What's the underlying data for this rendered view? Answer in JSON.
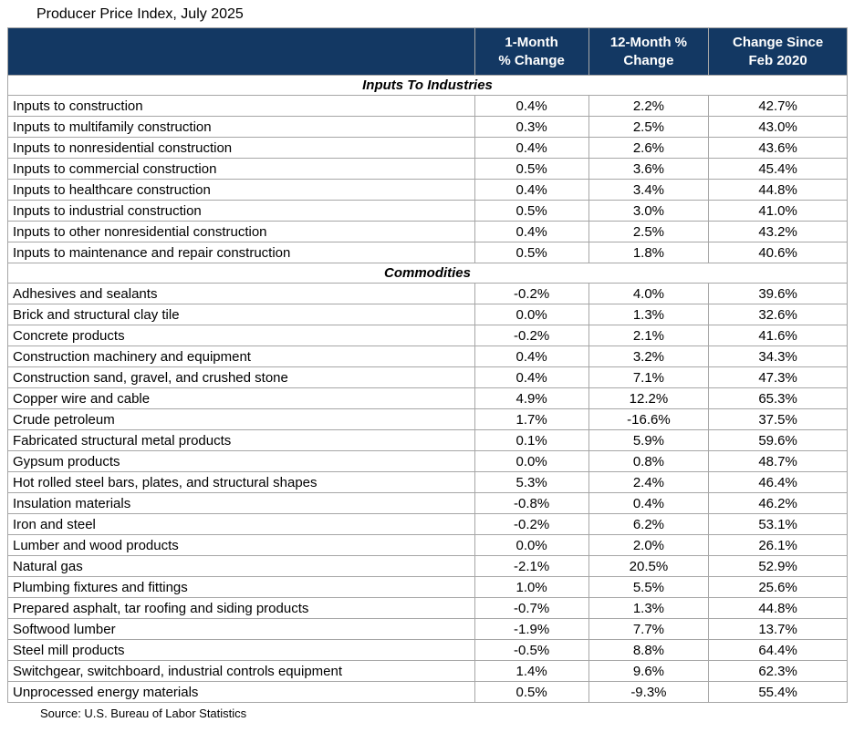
{
  "page_title": "Producer Price Index, July 2025",
  "source_note": "Source: U.S. Bureau of Labor Statistics",
  "colors": {
    "header_bg": "#133863",
    "header_text": "#ffffff",
    "border": "#a6a6a6",
    "text": "#000000",
    "background": "#ffffff"
  },
  "chart_data": {
    "type": "table",
    "title": "Producer Price Index, July 2025",
    "columns": [
      "",
      "1-Month % Change",
      "12-Month % Change",
      "Change Since Feb 2020"
    ],
    "columns_display": [
      "",
      "1-Month\n% Change",
      "12-Month %\nChange",
      "Change Since\nFeb 2020"
    ],
    "sections": [
      {
        "label": "Inputs To Industries",
        "rows": [
          {
            "label": "Inputs to construction",
            "one_month": "0.4%",
            "twelve_month": "2.2%",
            "since_feb_2020": "42.7%"
          },
          {
            "label": "Inputs to multifamily construction",
            "one_month": "0.3%",
            "twelve_month": "2.5%",
            "since_feb_2020": "43.0%"
          },
          {
            "label": "Inputs to nonresidential construction",
            "one_month": "0.4%",
            "twelve_month": "2.6%",
            "since_feb_2020": "43.6%"
          },
          {
            "label": "Inputs to commercial construction",
            "one_month": "0.5%",
            "twelve_month": "3.6%",
            "since_feb_2020": "45.4%"
          },
          {
            "label": "Inputs to healthcare construction",
            "one_month": "0.4%",
            "twelve_month": "3.4%",
            "since_feb_2020": "44.8%"
          },
          {
            "label": "Inputs to industrial construction",
            "one_month": "0.5%",
            "twelve_month": "3.0%",
            "since_feb_2020": "41.0%"
          },
          {
            "label": "Inputs to other nonresidential construction",
            "one_month": "0.4%",
            "twelve_month": "2.5%",
            "since_feb_2020": "43.2%"
          },
          {
            "label": "Inputs to maintenance and repair construction",
            "one_month": "0.5%",
            "twelve_month": "1.8%",
            "since_feb_2020": "40.6%"
          }
        ]
      },
      {
        "label": "Commodities",
        "rows": [
          {
            "label": "Adhesives and sealants",
            "one_month": "-0.2%",
            "twelve_month": "4.0%",
            "since_feb_2020": "39.6%"
          },
          {
            "label": "Brick and structural clay tile",
            "one_month": "0.0%",
            "twelve_month": "1.3%",
            "since_feb_2020": "32.6%"
          },
          {
            "label": "Concrete products",
            "one_month": "-0.2%",
            "twelve_month": "2.1%",
            "since_feb_2020": "41.6%"
          },
          {
            "label": "Construction machinery and equipment",
            "one_month": "0.4%",
            "twelve_month": "3.2%",
            "since_feb_2020": "34.3%"
          },
          {
            "label": "Construction sand, gravel, and crushed stone",
            "one_month": "0.4%",
            "twelve_month": "7.1%",
            "since_feb_2020": "47.3%"
          },
          {
            "label": "Copper wire and cable",
            "one_month": "4.9%",
            "twelve_month": "12.2%",
            "since_feb_2020": "65.3%"
          },
          {
            "label": "Crude petroleum",
            "one_month": "1.7%",
            "twelve_month": "-16.6%",
            "since_feb_2020": "37.5%"
          },
          {
            "label": "Fabricated structural metal products",
            "one_month": "0.1%",
            "twelve_month": "5.9%",
            "since_feb_2020": "59.6%"
          },
          {
            "label": "Gypsum products",
            "one_month": "0.0%",
            "twelve_month": "0.8%",
            "since_feb_2020": "48.7%"
          },
          {
            "label": "Hot rolled steel bars, plates, and structural shapes",
            "one_month": "5.3%",
            "twelve_month": "2.4%",
            "since_feb_2020": "46.4%"
          },
          {
            "label": "Insulation materials",
            "one_month": "-0.8%",
            "twelve_month": "0.4%",
            "since_feb_2020": "46.2%"
          },
          {
            "label": "Iron and steel",
            "one_month": "-0.2%",
            "twelve_month": "6.2%",
            "since_feb_2020": "53.1%"
          },
          {
            "label": "Lumber and wood products",
            "one_month": "0.0%",
            "twelve_month": "2.0%",
            "since_feb_2020": "26.1%"
          },
          {
            "label": "Natural gas",
            "one_month": "-2.1%",
            "twelve_month": "20.5%",
            "since_feb_2020": "52.9%"
          },
          {
            "label": "Plumbing fixtures and fittings",
            "one_month": "1.0%",
            "twelve_month": "5.5%",
            "since_feb_2020": "25.6%"
          },
          {
            "label": "Prepared asphalt, tar roofing and siding products",
            "one_month": "-0.7%",
            "twelve_month": "1.3%",
            "since_feb_2020": "44.8%"
          },
          {
            "label": "Softwood lumber",
            "one_month": "-1.9%",
            "twelve_month": "7.7%",
            "since_feb_2020": "13.7%"
          },
          {
            "label": "Steel mill products",
            "one_month": "-0.5%",
            "twelve_month": "8.8%",
            "since_feb_2020": "64.4%"
          },
          {
            "label": "Switchgear, switchboard, industrial controls equipment",
            "one_month": "1.4%",
            "twelve_month": "9.6%",
            "since_feb_2020": "62.3%"
          },
          {
            "label": "Unprocessed energy materials",
            "one_month": "0.5%",
            "twelve_month": "-9.3%",
            "since_feb_2020": "55.4%"
          }
        ]
      }
    ]
  }
}
